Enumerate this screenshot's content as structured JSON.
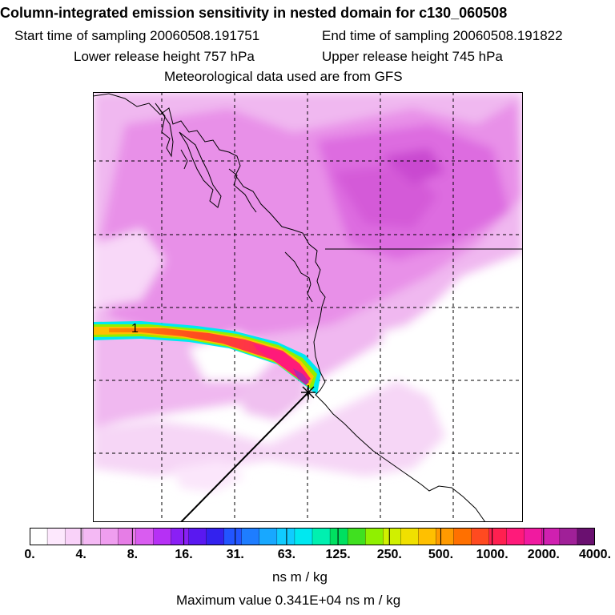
{
  "header": {
    "title": "Column-integrated emission sensitivity in nested domain for c130_060508",
    "start": "Start time of sampling 20060508.191751",
    "end": "End time of sampling 20060508.191822",
    "lower": "Lower release height  757 hPa",
    "upper": "Upper release height  745 hPa",
    "met": "Meteorological data used are from GFS"
  },
  "map": {
    "plume_label": "1"
  },
  "colorbar": {
    "ticks": [
      "0.",
      "4.",
      "8.",
      "16.",
      "31.",
      "63.",
      "125.",
      "250.",
      "500.",
      "1000.",
      "2000.",
      "4000."
    ],
    "unit": "ns m / kg",
    "colors": [
      "#ffffff",
      "#fde8fd",
      "#f9d2f9",
      "#f4b9f4",
      "#ef9eef",
      "#e67de6",
      "#d95cf0",
      "#b630f5",
      "#8a1ff5",
      "#5a18f0",
      "#3322ee",
      "#2255ff",
      "#1e7dff",
      "#18a8ff",
      "#10ccff",
      "#00e8f0",
      "#00f0b0",
      "#00e060",
      "#40e020",
      "#90f000",
      "#d0f000",
      "#f0e000",
      "#ffc000",
      "#ff9a00",
      "#ff7000",
      "#ff4a20",
      "#ff2050",
      "#ff1a7a",
      "#f01aa0",
      "#d020b0",
      "#a02098",
      "#6a1070"
    ]
  },
  "footer": {
    "max": "Maximum value  0.341E+04 ns m / kg"
  }
}
